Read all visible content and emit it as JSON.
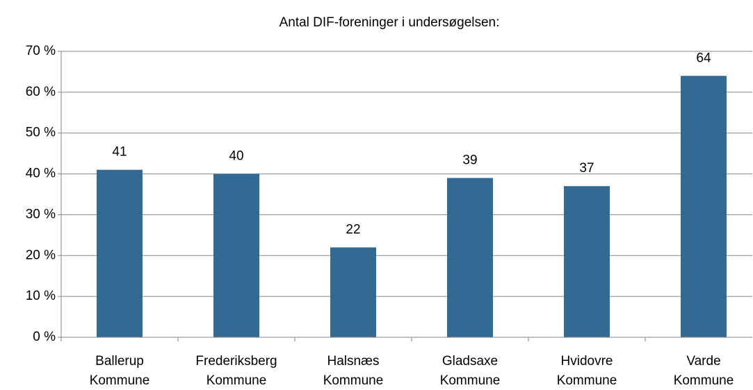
{
  "chart_data": {
    "type": "bar",
    "title": "Antal DIF-foreninger i undersøgelsen:",
    "categories": [
      "Ballerup Kommune",
      "Frederiksberg Kommune",
      "Halsnæs Kommune",
      "Gladsaxe Kommune",
      "Hvidovre Kommune",
      "Varde Kommune"
    ],
    "values": [
      41,
      40,
      22,
      39,
      37,
      64
    ],
    "color": "#336a93",
    "ylim": [
      0,
      70
    ],
    "yticks": [
      {
        "value": 0,
        "label": "0 %"
      },
      {
        "value": 10,
        "label": "10 %"
      },
      {
        "value": 20,
        "label": "20 %"
      },
      {
        "value": 30,
        "label": "30 %"
      },
      {
        "value": 40,
        "label": "40 %"
      },
      {
        "value": 50,
        "label": "50 %"
      },
      {
        "value": 60,
        "label": "60 %"
      },
      {
        "value": 70,
        "label": "70 %"
      }
    ],
    "grid": true
  }
}
